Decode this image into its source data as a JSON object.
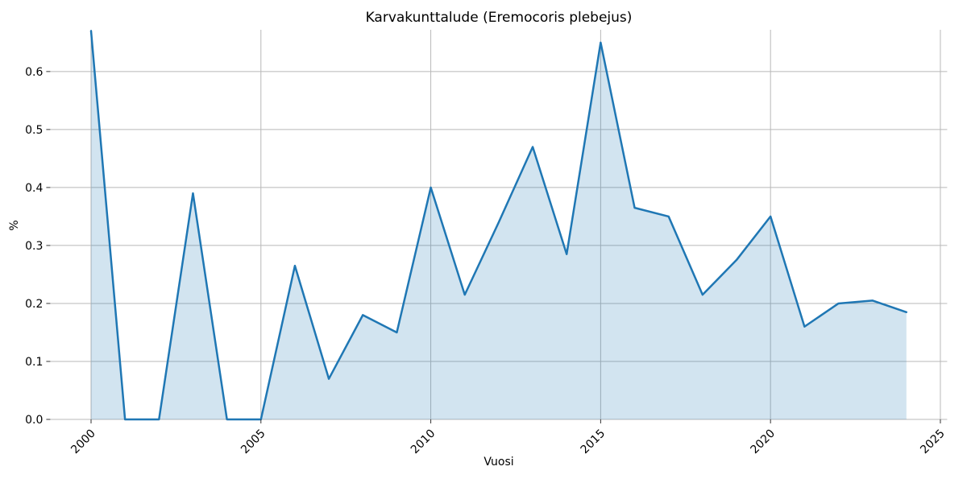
{
  "chart_data": {
    "type": "area",
    "title": "Karvakunttalude (Eremocoris plebejus)",
    "xlabel": "Vuosi",
    "ylabel": "%",
    "x": [
      2000,
      2001,
      2002,
      2003,
      2004,
      2005,
      2006,
      2007,
      2008,
      2009,
      2010,
      2011,
      2012,
      2013,
      2014,
      2015,
      2016,
      2017,
      2018,
      2019,
      2020,
      2021,
      2022,
      2023,
      2024
    ],
    "values": [
      0.67,
      0.0,
      0.0,
      0.39,
      0.0,
      0.0,
      0.265,
      0.07,
      0.18,
      0.15,
      0.4,
      0.215,
      0.34,
      0.47,
      0.285,
      0.65,
      0.365,
      0.35,
      0.215,
      0.275,
      0.35,
      0.16,
      0.2,
      0.205,
      0.185
    ],
    "x_ticks": [
      2000,
      2005,
      2010,
      2015,
      2020,
      2025
    ],
    "y_ticks": [
      0.0,
      0.1,
      0.2,
      0.3,
      0.4,
      0.5,
      0.6
    ],
    "xlim": [
      1998.8,
      2025.2
    ],
    "ylim": [
      0.0,
      0.672
    ],
    "grid": true,
    "legend": null,
    "line_color": "#1f77b4",
    "fill_color": "#1f77b4",
    "fill_opacity": 0.2,
    "grid_color": "#b8b8b8",
    "tick_color": "#333333",
    "text_color": "#000000"
  }
}
